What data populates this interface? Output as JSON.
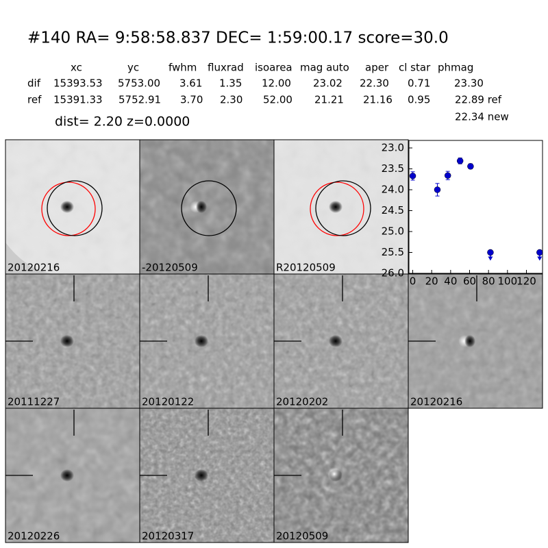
{
  "header": {
    "title": "#140   RA= 9:58:58.837 DEC= 1:59:00.17       score=30.0"
  },
  "table": {
    "columns": [
      "xc",
      "yc",
      "fwhm",
      "fluxrad",
      "isoarea",
      "mag auto",
      "aper",
      "cl star",
      "phmag"
    ],
    "rows": [
      [
        "dif",
        "15393.53",
        "5753.00",
        "3.61",
        "1.35",
        "12.00",
        "23.02",
        "22.30",
        "0.71",
        "23.30"
      ],
      [
        "ref",
        "15391.33",
        "5752.91",
        "3.70",
        "2.30",
        "52.00",
        "21.21",
        "21.16",
        "0.95",
        "22.89 ref"
      ]
    ],
    "extra": "22.34 new"
  },
  "info": "dist=  2.20       z=0.0000",
  "stamps": [
    "20120216",
    "-20120509",
    "R20120509",
    "20111227",
    "20120122",
    "20120202",
    "20120216",
    "20120226",
    "20120317",
    "20120509"
  ],
  "chart_data": {
    "type": "scatter",
    "color": "#0000cc",
    "x": [
      0,
      26,
      37,
      50,
      61,
      82,
      134
    ],
    "values": [
      23.67,
      24.0,
      23.66,
      23.31,
      23.44,
      25.5,
      25.5
    ],
    "errors": [
      0.1,
      0.15,
      0.1,
      0.07,
      0.06,
      0,
      0
    ],
    "upper_limit": [
      false,
      false,
      false,
      false,
      false,
      true,
      true
    ],
    "xlim": [
      -4,
      137
    ],
    "ylim": [
      26.0,
      22.82
    ],
    "xticks": [
      0,
      20,
      40,
      60,
      80,
      100,
      120
    ],
    "yticks": [
      {
        "value": 23,
        "label": "23.0"
      },
      23.5,
      {
        "value": 24,
        "label": "24.0"
      },
      24.5,
      {
        "value": 25,
        "label": "25.0"
      },
      25.5,
      {
        "value": 26,
        "label": "26.0"
      }
    ]
  }
}
